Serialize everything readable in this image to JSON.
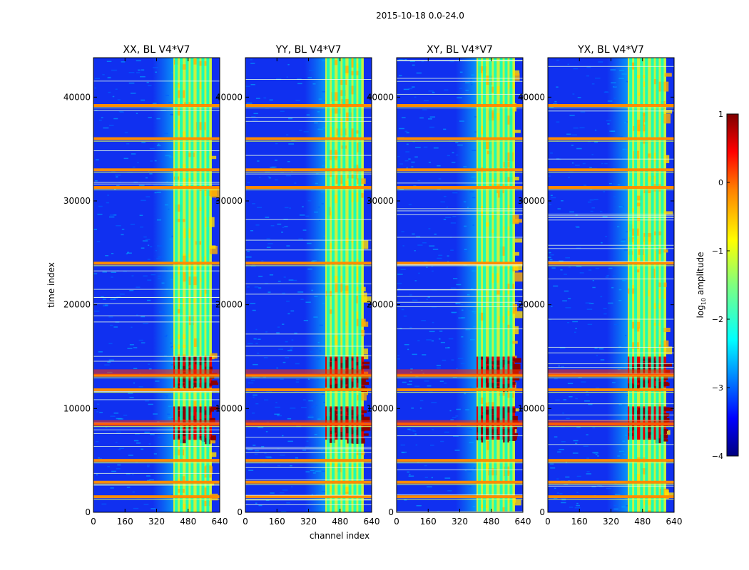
{
  "chart_data": {
    "type": "heatmap",
    "suptitle": "2015-10-18 0.0-24.0",
    "xlabel": "channel index",
    "ylabel": "time index",
    "xlim": [
      0,
      640
    ],
    "ylim": [
      0,
      43800
    ],
    "xticks": [
      0,
      160,
      320,
      480,
      640
    ],
    "yticks": [
      0,
      10000,
      20000,
      30000,
      40000
    ],
    "xtick_labels": [
      "0",
      "160",
      "320",
      "480",
      "640"
    ],
    "ytick_labels": [
      "0",
      "10000",
      "20000",
      "30000",
      "40000"
    ],
    "colormap": "jet",
    "panels": [
      {
        "title": "XX, BL V4*V7",
        "polarization": "XX"
      },
      {
        "title": "YY, BL V4*V7",
        "polarization": "YY"
      },
      {
        "title": "XY, BL V4*V7",
        "polarization": "XY"
      },
      {
        "title": "YX, BL V4*V7",
        "polarization": "YX"
      }
    ],
    "colorbar": {
      "label_prefix": "log",
      "label_subscript": "10",
      "label_suffix": " amplitude",
      "range": [
        -4,
        1
      ],
      "ticks": [
        1,
        0,
        -1,
        -2,
        -3,
        -4
      ],
      "tick_labels": [
        "1",
        "0",
        "−1",
        "−2",
        "−3",
        "−4"
      ]
    },
    "features": {
      "rfi_channel_band": [
        405,
        600
      ],
      "rfi_channel_columns": [
        420,
        445,
        475,
        500,
        530,
        555,
        580
      ],
      "high_amplitude_time_ranges": [
        [
          7000,
          10200
        ],
        [
          12000,
          15000
        ]
      ],
      "broadband_lines_time": [
        1500,
        2900,
        5000,
        8500,
        11800,
        13200,
        24000,
        31300,
        33000,
        36000,
        39200
      ]
    }
  }
}
